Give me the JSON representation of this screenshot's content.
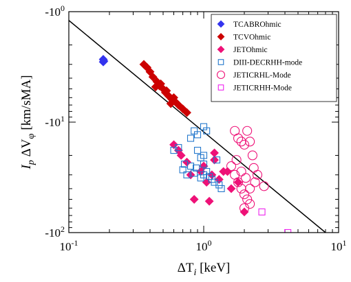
{
  "chart_data": {
    "type": "scatter",
    "xlabel": "ΔT_i [keV]",
    "ylabel": "I_p ΔV_φ [km/sMA]",
    "x_scale": "log",
    "y_scale": "log",
    "xlim": [
      0.1,
      10
    ],
    "ylim": [
      -1,
      -100
    ],
    "x_ticks": [
      {
        "value": 0.1,
        "label": "10",
        "exp": "-1"
      },
      {
        "value": 1,
        "label": "10",
        "exp": "0"
      },
      {
        "value": 10,
        "label": "10",
        "exp": "1"
      }
    ],
    "y_ticks": [
      {
        "value": -1,
        "label": "-10",
        "exp": "0"
      },
      {
        "value": -10,
        "label": "-10",
        "exp": "1"
      },
      {
        "value": -100,
        "label": "-10",
        "exp": "2"
      }
    ],
    "grid": false,
    "legend_position": "top-right",
    "fit_line": {
      "points": [
        [
          0.1,
          -1.2
        ],
        [
          8.0,
          -100
        ]
      ],
      "color": "#000000"
    },
    "series": [
      {
        "name": "TCABROhmic",
        "marker": "diamond",
        "filled": true,
        "color": "#3333ee",
        "points": [
          [
            0.18,
            -2.7
          ],
          [
            0.18,
            -2.85
          ],
          [
            0.182,
            -2.8
          ]
        ]
      },
      {
        "name": "TCVOhmic",
        "marker": "diamond",
        "filled": true,
        "color": "#cc0000",
        "points": [
          [
            0.36,
            -3.0
          ],
          [
            0.38,
            -3.2
          ],
          [
            0.4,
            -3.5
          ],
          [
            0.42,
            -3.9
          ],
          [
            0.45,
            -4.3
          ],
          [
            0.47,
            -4.7
          ],
          [
            0.5,
            -5.0
          ],
          [
            0.52,
            -5.4
          ],
          [
            0.55,
            -5.8
          ],
          [
            0.58,
            -6.2
          ],
          [
            0.62,
            -6.6
          ],
          [
            0.65,
            -7.0
          ],
          [
            0.7,
            -7.6
          ],
          [
            0.75,
            -8.2
          ],
          [
            0.48,
            -4.5
          ],
          [
            0.53,
            -5.2
          ],
          [
            0.6,
            -6.0
          ],
          [
            0.57,
            -6.8
          ],
          [
            0.44,
            -4.8
          ]
        ]
      },
      {
        "name": "JETOhmic",
        "marker": "diamond",
        "filled": true,
        "color": "#ee1177",
        "points": [
          [
            0.6,
            -16
          ],
          [
            0.68,
            -20
          ],
          [
            0.75,
            -23
          ],
          [
            0.8,
            -30
          ],
          [
            0.85,
            -50
          ],
          [
            0.95,
            -28
          ],
          [
            1.0,
            -25
          ],
          [
            1.05,
            -35
          ],
          [
            1.1,
            -52
          ],
          [
            1.15,
            -30
          ],
          [
            1.2,
            -19
          ],
          [
            1.3,
            -33
          ],
          [
            1.4,
            -28
          ],
          [
            1.5,
            -28
          ],
          [
            1.6,
            -40
          ],
          [
            1.8,
            -35
          ],
          [
            2.0,
            -65
          ],
          [
            1.2,
            -22
          ],
          [
            0.65,
            -18
          ]
        ]
      },
      {
        "name": "DIII-DECRHH-mode",
        "marker": "square",
        "filled": false,
        "color": "#2277cc",
        "points": [
          [
            0.85,
            -12
          ],
          [
            0.9,
            -13
          ],
          [
            1.0,
            -11
          ],
          [
            1.05,
            -12
          ],
          [
            0.8,
            -14
          ],
          [
            0.9,
            -18
          ],
          [
            0.95,
            -21
          ],
          [
            1.0,
            -24
          ],
          [
            0.7,
            -27
          ],
          [
            0.75,
            -30
          ],
          [
            0.85,
            -29
          ],
          [
            1.0,
            -30
          ],
          [
            1.1,
            -31
          ],
          [
            0.65,
            -17
          ],
          [
            0.6,
            -18
          ],
          [
            1.15,
            -33
          ],
          [
            1.2,
            -35
          ],
          [
            1.3,
            -37
          ],
          [
            1.0,
            -20
          ],
          [
            0.72,
            -24
          ],
          [
            0.88,
            -26
          ],
          [
            1.25,
            -22
          ],
          [
            0.95,
            -32
          ],
          [
            1.05,
            -28
          ],
          [
            1.35,
            -40
          ],
          [
            0.8,
            -25
          ]
        ]
      },
      {
        "name": "JETICRHL-Mode",
        "marker": "circle",
        "filled": false,
        "color": "#ee1177",
        "points": [
          [
            1.7,
            -12
          ],
          [
            1.8,
            -14
          ],
          [
            1.9,
            -15
          ],
          [
            2.0,
            -16
          ],
          [
            2.1,
            -12
          ],
          [
            2.2,
            -15
          ],
          [
            1.6,
            -25
          ],
          [
            1.7,
            -30
          ],
          [
            1.8,
            -35
          ],
          [
            1.9,
            -40
          ],
          [
            2.0,
            -45
          ],
          [
            2.1,
            -50
          ],
          [
            2.2,
            -55
          ],
          [
            2.3,
            -20
          ],
          [
            2.4,
            -35
          ],
          [
            1.9,
            -28
          ],
          [
            2.0,
            -60
          ],
          [
            2.2,
            -40
          ],
          [
            2.5,
            -30
          ],
          [
            2.8,
            -38
          ],
          [
            1.75,
            -22
          ],
          [
            2.05,
            -32
          ],
          [
            2.35,
            -26
          ]
        ]
      },
      {
        "name": "JETICRHH-Mode",
        "marker": "square",
        "filled": false,
        "color": "#ee22ee",
        "points": [
          [
            2.7,
            -65
          ],
          [
            4.2,
            -100
          ]
        ]
      }
    ]
  }
}
